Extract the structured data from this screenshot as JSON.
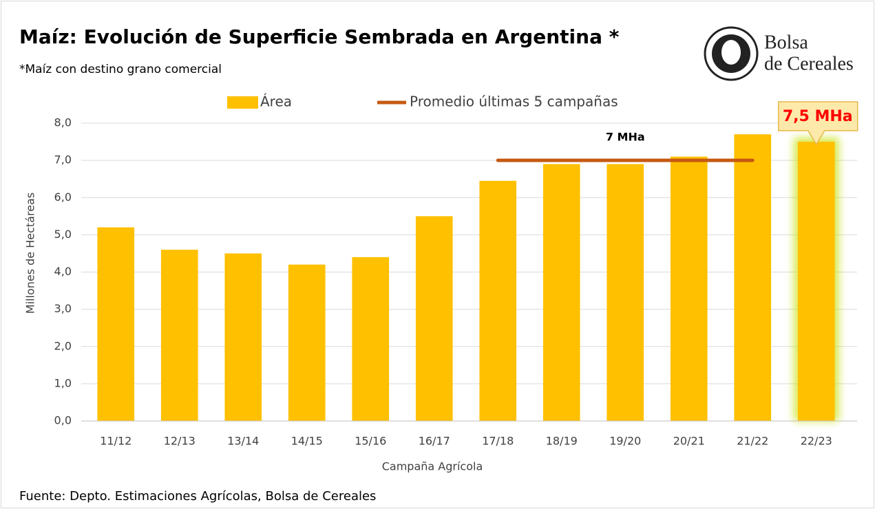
{
  "chart_data": {
    "type": "bar",
    "title": "Maíz: Evolución de Superficie Sembrada en Argentina *",
    "subtitle": "*Maíz con destino grano comercial",
    "x_label": "Campaña Agrícola",
    "y_label": "Millones de Hectáreas",
    "source": "Fuente: Depto. Estimaciones Agrícolas, Bolsa de Cereales",
    "logo": [
      "Bolsa",
      "de Cereales"
    ],
    "categories": [
      "11/12",
      "12/13",
      "13/14",
      "14/15",
      "15/16",
      "16/17",
      "17/18",
      "18/19",
      "19/20",
      "20/21",
      "21/22",
      "22/23"
    ],
    "series": [
      {
        "name": "Área",
        "type": "bar",
        "color": "#ffc000",
        "values": [
          5.2,
          4.6,
          4.5,
          4.2,
          4.4,
          5.5,
          6.45,
          6.9,
          6.9,
          7.1,
          7.7,
          7.5
        ]
      },
      {
        "name": "Promedio últimas 5 campañas",
        "type": "line",
        "color": "#c55a11",
        "values": [
          null,
          null,
          null,
          null,
          null,
          null,
          7.0,
          7.0,
          7.0,
          7.0,
          7.0,
          null
        ]
      }
    ],
    "annotations": [
      "7 MHa",
      "7,5 MHa"
    ],
    "ylim": [
      0,
      8
    ],
    "yticks": [
      {
        "value": 0,
        "label": "0,0"
      },
      {
        "value": 1,
        "label": "1,0"
      },
      {
        "value": 2,
        "label": "2,0"
      },
      {
        "value": 3,
        "label": "3,0"
      },
      {
        "value": 4,
        "label": "4,0"
      },
      {
        "value": 5,
        "label": "5,0"
      },
      {
        "value": 6,
        "label": "6,0"
      },
      {
        "value": 7,
        "label": "7,0"
      },
      {
        "value": 8,
        "label": "8,0"
      }
    ],
    "grid": true
  }
}
